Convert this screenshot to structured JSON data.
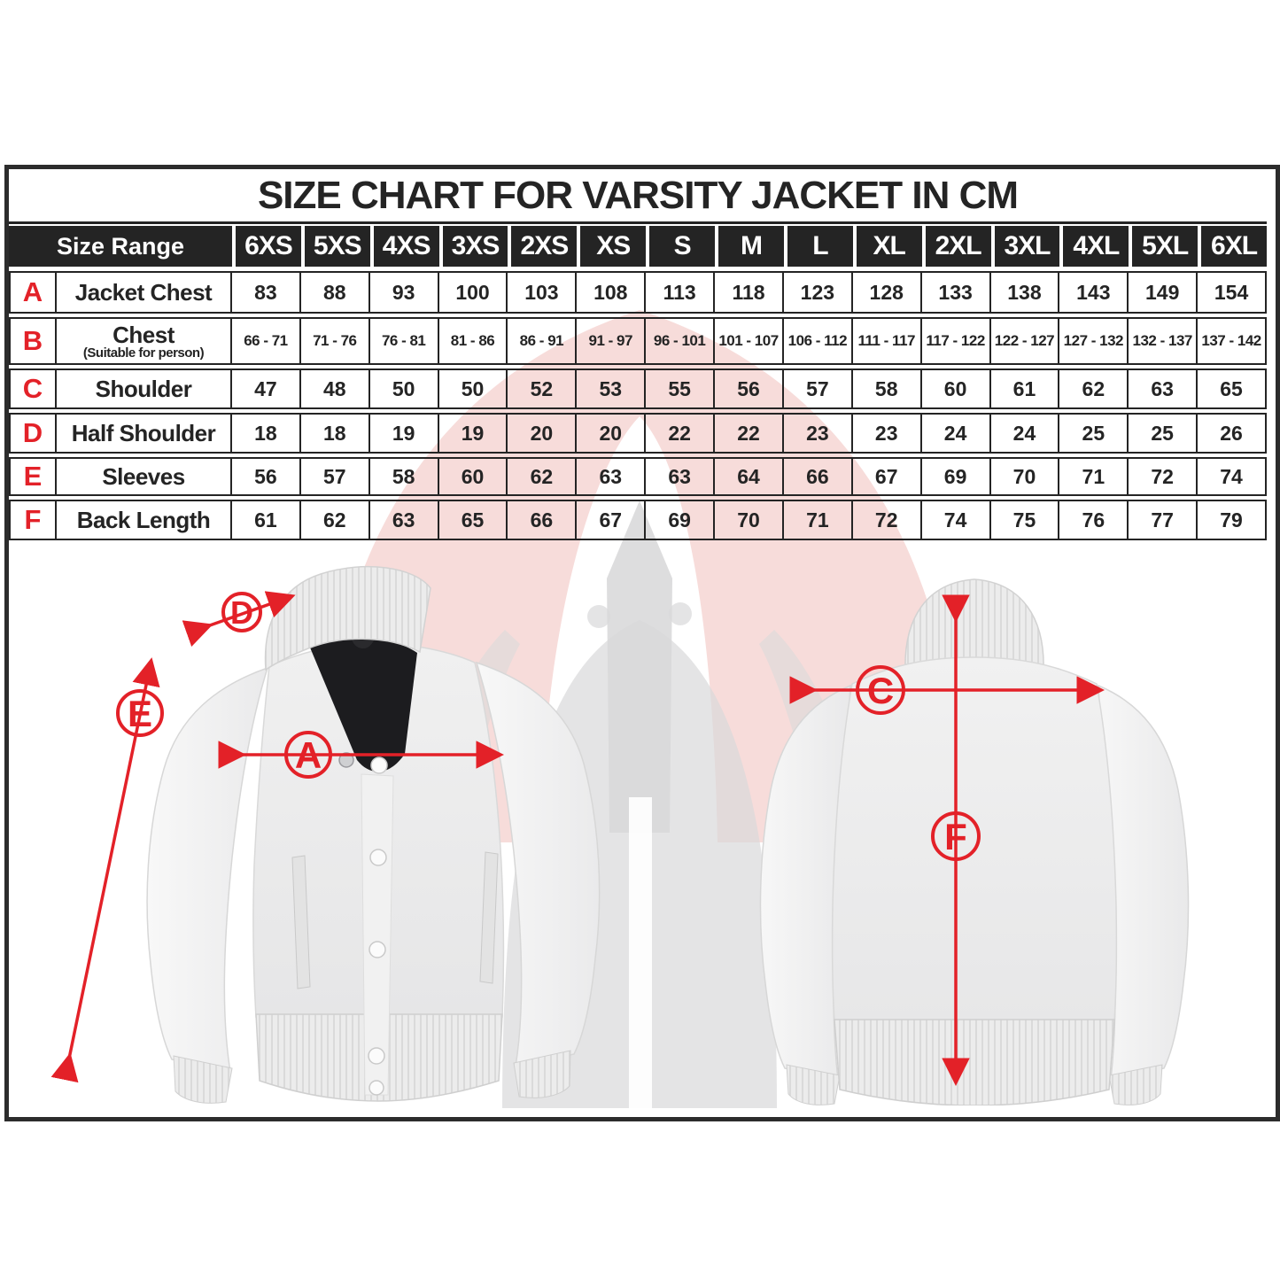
{
  "title": "SIZE CHART FOR VARSITY JACKET IN CM",
  "colors": {
    "accent_red": "#e32128",
    "header_bg": "#242424",
    "border": "#242424"
  },
  "table": {
    "corner_label": "Size Range",
    "sizes": [
      "6XS",
      "5XS",
      "4XS",
      "3XS",
      "2XS",
      "XS",
      "S",
      "M",
      "L",
      "XL",
      "2XL",
      "3XL",
      "4XL",
      "5XL",
      "6XL"
    ],
    "rows": [
      {
        "letter": "A",
        "label": "Jacket Chest",
        "sublabel": "",
        "values": [
          "83",
          "88",
          "93",
          "100",
          "103",
          "108",
          "113",
          "118",
          "123",
          "128",
          "133",
          "138",
          "143",
          "149",
          "154"
        ]
      },
      {
        "letter": "B",
        "label": "Chest",
        "sublabel": "(Suitable for person)",
        "values": [
          "66 - 71",
          "71 - 76",
          "76 - 81",
          "81 - 86",
          "86 - 91",
          "91 - 97",
          "96 - 101",
          "101 - 107",
          "106 - 112",
          "111 - 117",
          "117 - 122",
          "122 - 127",
          "127 - 132",
          "132 - 137",
          "137 - 142"
        ]
      },
      {
        "letter": "C",
        "label": "Shoulder",
        "sublabel": "",
        "values": [
          "47",
          "48",
          "50",
          "50",
          "52",
          "53",
          "55",
          "56",
          "57",
          "58",
          "60",
          "61",
          "62",
          "63",
          "65"
        ]
      },
      {
        "letter": "D",
        "label": "Half Shoulder",
        "sublabel": "",
        "values": [
          "18",
          "18",
          "19",
          "19",
          "20",
          "20",
          "22",
          "22",
          "23",
          "23",
          "24",
          "24",
          "25",
          "25",
          "26"
        ]
      },
      {
        "letter": "E",
        "label": "Sleeves",
        "sublabel": "",
        "values": [
          "56",
          "57",
          "58",
          "60",
          "62",
          "63",
          "63",
          "64",
          "66",
          "67",
          "69",
          "70",
          "71",
          "72",
          "74"
        ]
      },
      {
        "letter": "F",
        "label": "Back Length",
        "sublabel": "",
        "values": [
          "61",
          "62",
          "63",
          "65",
          "66",
          "67",
          "69",
          "70",
          "71",
          "72",
          "74",
          "75",
          "76",
          "77",
          "79"
        ]
      }
    ]
  },
  "diagram": {
    "markers": {
      "a": "A",
      "c": "C",
      "d": "D",
      "e": "E",
      "f": "F"
    }
  }
}
